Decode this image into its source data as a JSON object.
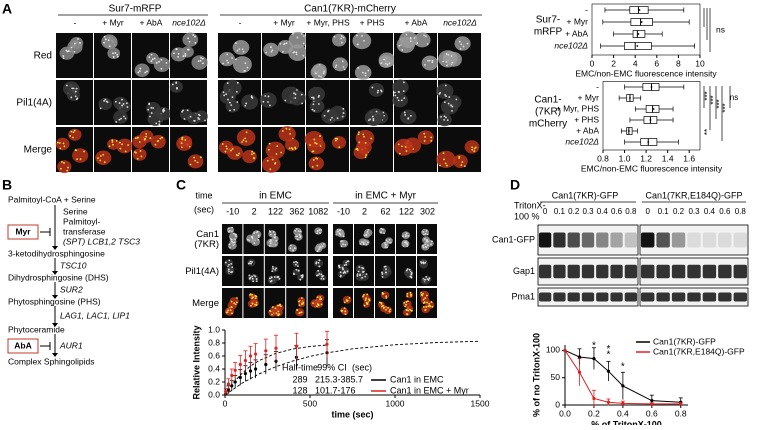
{
  "panels": {
    "A": {
      "letter": "A",
      "groups": [
        {
          "name": "Sur7-mRFP",
          "color": "#e0312f",
          "columns": [
            "-",
            "+ Myr",
            "+ AbA",
            "nce102Δ"
          ]
        },
        {
          "name": "Can1(7KR)-mCherry",
          "color": "#e0312f",
          "columns": [
            "-",
            "+ Myr",
            "+ Myr, PHS",
            "+ PHS",
            "+ AbA",
            "nce102Δ"
          ]
        }
      ],
      "rows": [
        {
          "text": "Red",
          "color": "#e02020"
        },
        {
          "text": "Pil1(4A)",
          "color": "#4caf22"
        },
        {
          "text": "Merge",
          "color": "#000000"
        }
      ],
      "charts": [
        {
          "type": "box",
          "title": [
            "Sur7-",
            "mRFP"
          ],
          "categories": [
            "-",
            "+ Myr",
            "+ AbA",
            "nce102Δ"
          ],
          "xlabel": "EMC/non-EMC fluorescence intensity",
          "xlim": [
            0,
            10
          ],
          "xticks": [
            0,
            2,
            4,
            6,
            8,
            10
          ],
          "boxes": [
            {
              "min": 1.2,
              "q1": 3.5,
              "median": 4.3,
              "q3": 5.2,
              "max": 8.5,
              "mean": 4.4
            },
            {
              "min": 1.0,
              "q1": 3.6,
              "median": 4.5,
              "q3": 5.6,
              "max": 9.0,
              "mean": 4.6
            },
            {
              "min": 2.0,
              "q1": 3.8,
              "median": 4.2,
              "q3": 4.9,
              "max": 6.5,
              "mean": 4.3
            },
            {
              "min": 0.8,
              "q1": 3.0,
              "median": 4.0,
              "q3": 5.5,
              "max": 9.5,
              "mean": 4.2
            }
          ],
          "significance": [
            "ns"
          ]
        },
        {
          "type": "box",
          "title": [
            "Can1-",
            "(7KR)",
            "mCherry"
          ],
          "categories": [
            "-",
            "+ Myr",
            "+ Myr, PHS",
            "+ PHS",
            "+ AbA",
            "nce102Δ"
          ],
          "xlabel": "EMC/non-EMC fluorescence intensity",
          "xlim": [
            0.8,
            1.7
          ],
          "xticks": [
            0.8,
            {
              "value": 1,
              "label": "1.0"
            },
            1.2,
            1.4,
            1.6
          ],
          "boxes": [
            {
              "min": 1.0,
              "q1": 1.17,
              "median": 1.25,
              "q3": 1.32,
              "max": 1.55,
              "mean": 1.25
            },
            {
              "min": 0.95,
              "q1": 1.02,
              "median": 1.05,
              "q3": 1.08,
              "max": 1.15,
              "mean": 1.05
            },
            {
              "min": 1.1,
              "q1": 1.2,
              "median": 1.26,
              "q3": 1.32,
              "max": 1.45,
              "mean": 1.27
            },
            {
              "min": 1.05,
              "q1": 1.18,
              "median": 1.24,
              "q3": 1.3,
              "max": 1.45,
              "mean": 1.24
            },
            {
              "min": 0.97,
              "q1": 1.02,
              "median": 1.04,
              "q3": 1.07,
              "max": 1.12,
              "mean": 1.04
            },
            {
              "min": 1.0,
              "q1": 1.15,
              "median": 1.22,
              "q3": 1.3,
              "max": 1.5,
              "mean": 1.22
            }
          ],
          "significance": [
            "***",
            "***",
            "***",
            "***",
            "ns",
            "**"
          ]
        }
      ]
    },
    "B": {
      "letter": "B",
      "items": [
        "Palmitoyl-CoA + Serine",
        "Serine",
        "Palmitoyl-",
        "transferase",
        "(SPT) LCB1,2 TSC3",
        "3-ketodihydrosphingosine",
        "TSC10",
        "Dihydrosphingosine (DHS)",
        "SUR2",
        "Phytosphingosine (PHS)",
        "LAG1, LAC1, LIP1",
        "Phytoceramide",
        "AUR1",
        "Complex Sphingolipids"
      ],
      "inhibitors": [
        "Myr",
        "AbA"
      ]
    },
    "C": {
      "letter": "C",
      "time_label": [
        "time",
        "(sec)"
      ],
      "groups": [
        {
          "name": "in EMC",
          "times": [
            "-10",
            "2",
            "122",
            "362",
            "1082"
          ]
        },
        {
          "name": "in EMC + Myr",
          "times": [
            "-10",
            "2",
            "62",
            "122",
            "302"
          ]
        }
      ],
      "rows": [
        {
          "text": [
            "Can1",
            "(7KR)"
          ],
          "color": "#e02020"
        },
        {
          "text": [
            "Pil1(4A)"
          ],
          "color": "#4caf22"
        },
        {
          "text": [
            "Merge"
          ],
          "color": "#000000"
        }
      ],
      "chart": {
        "type": "line",
        "ylabel": "Relative Intensity",
        "xlabel": "time (sec)",
        "xlim": [
          0,
          1500
        ],
        "xticks": [
          0,
          500,
          1000,
          1500
        ],
        "ylim": [
          0,
          1
        ],
        "yticks": [
          {
            "value": 0,
            "label": "0.0"
          },
          0.2,
          0.4,
          0.6,
          0.8,
          {
            "value": 1,
            "label": "1.0"
          }
        ],
        "table": {
          "header": [
            "Half-time",
            "99% CI",
            "(sec)"
          ],
          "rows": [
            [
              "289",
              "215.3-385.7"
            ],
            [
              "128",
              "101.7-176"
            ]
          ]
        },
        "series": [
          {
            "name": "Can1 in EMC",
            "color": "#000000",
            "x": [
              5,
              20,
              40,
              60,
              90,
              120,
              150,
              180,
              240,
              300,
              420,
              600
            ],
            "values": [
              0.02,
              0.08,
              0.14,
              0.2,
              0.27,
              0.33,
              0.37,
              0.4,
              0.47,
              0.52,
              0.58,
              0.65
            ],
            "errors": [
              0.03,
              0.06,
              0.08,
              0.1,
              0.12,
              0.12,
              0.13,
              0.14,
              0.15,
              0.15,
              0.18,
              0.2
            ],
            "fit": {
              "x": [
                0,
                100,
                200,
                300,
                400,
                500,
                600,
                750,
                1000,
                1250,
                1500
              ],
              "values": [
                0,
                0.181,
                0.324,
                0.436,
                0.524,
                0.594,
                0.648,
                0.71,
                0.773,
                0.808,
                0.827
              ]
            }
          },
          {
            "name": "Can1 in EMC + Myr",
            "color": "#e02020",
            "x": [
              5,
              20,
              40,
              60,
              90,
              120,
              150,
              180,
              240,
              300,
              420,
              600
            ],
            "values": [
              0.05,
              0.17,
              0.3,
              0.38,
              0.47,
              0.53,
              0.6,
              0.63,
              0.68,
              0.72,
              0.75,
              0.78
            ],
            "errors": [
              0.05,
              0.08,
              0.1,
              0.12,
              0.14,
              0.15,
              0.15,
              0.16,
              0.18,
              0.2,
              0.2,
              0.2
            ],
            "fit": {
              "x": [
                0,
                50,
                100,
                150,
                200,
                300,
                400,
                500,
                600
              ],
              "values": [
                0,
                0.19,
                0.334,
                0.445,
                0.529,
                0.642,
                0.708,
                0.746,
                0.769
              ]
            }
          }
        ]
      }
    },
    "D": {
      "letter": "D",
      "triton_label": [
        "TritonX-",
        "100 %"
      ],
      "groups": [
        {
          "name": "Can1(7KR)-GFP",
          "concentrations": [
            "0",
            "0.1",
            "0.2",
            "0.3",
            "0.4",
            "0.6",
            "0.8"
          ]
        },
        {
          "name": "Can1(7KR,E184Q)-GFP",
          "concentrations": [
            "0",
            "0.1",
            "0.2",
            "0.3",
            "0.4",
            "0.6",
            "0.8"
          ]
        }
      ],
      "blots": [
        "Can1-GFP",
        "Gap1",
        "Pma1"
      ],
      "chart": {
        "type": "line",
        "ylabel": "% of no TritonX-100",
        "xlabel": "% of TritonX-100",
        "xlim": [
          0,
          0.85
        ],
        "xticks": [
          {
            "value": 0,
            "label": "0.0"
          },
          0.2,
          0.4,
          0.6,
          0.8
        ],
        "ylim": [
          0,
          110
        ],
        "yticks": [
          0,
          50,
          100
        ],
        "series": [
          {
            "name": "Can1(7KR)-GFP",
            "color": "#000000",
            "x": [
              0,
              0.1,
              0.2,
              0.3,
              0.4,
              0.6,
              0.8
            ],
            "values": [
              100,
              88,
              85,
              62,
              35,
              8,
              5
            ],
            "errors": [
              0,
              15,
              20,
              18,
              25,
              10,
              8
            ]
          },
          {
            "name": "Can1(7KR,E184Q)-GFP",
            "color": "#e02020",
            "x": [
              0,
              0.1,
              0.2,
              0.3,
              0.4,
              0.6,
              0.8
            ],
            "values": [
              100,
              60,
              12,
              5,
              3,
              2,
              2
            ],
            "errors": [
              0,
              25,
              15,
              6,
              4,
              2,
              2
            ]
          }
        ],
        "annotations": [
          {
            "text": "*",
            "x": 0.2,
            "y": 108
          },
          {
            "text": "*",
            "x": 0.3,
            "y": 92
          },
          {
            "text": "*",
            "x": 0.3,
            "y": 102
          },
          {
            "text": "*",
            "x": 0.4,
            "y": 70
          }
        ]
      }
    }
  }
}
